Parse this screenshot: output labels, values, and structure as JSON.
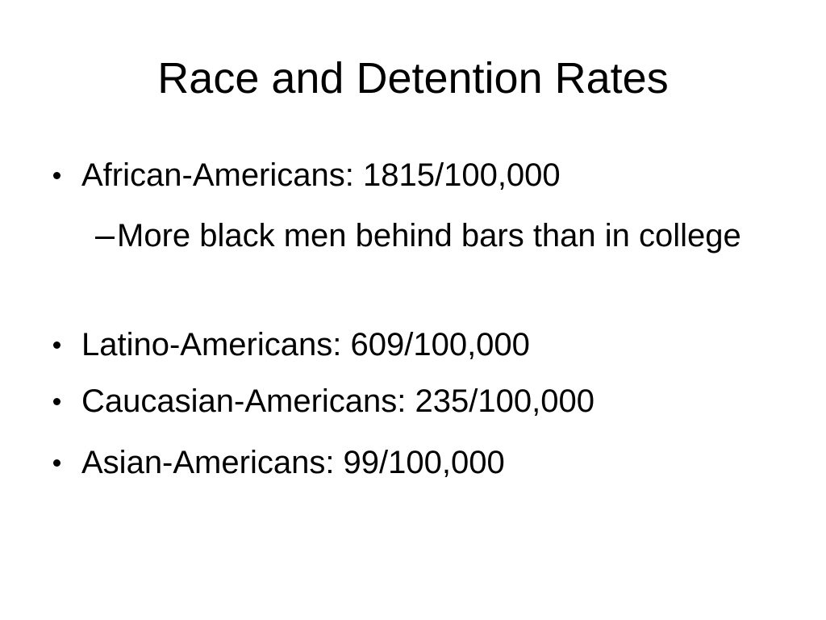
{
  "title": "Race and Detention Rates",
  "bullets": [
    {
      "text": "African-Americans: 1815/100,000",
      "sub_bullets": [
        "More black men behind bars than in college"
      ]
    },
    {
      "text": "Latino-Americans: 609/100,000"
    },
    {
      "text": "Caucasian-Americans: 235/100,000"
    },
    {
      "text": "Asian-Americans: 99/100,000"
    }
  ]
}
